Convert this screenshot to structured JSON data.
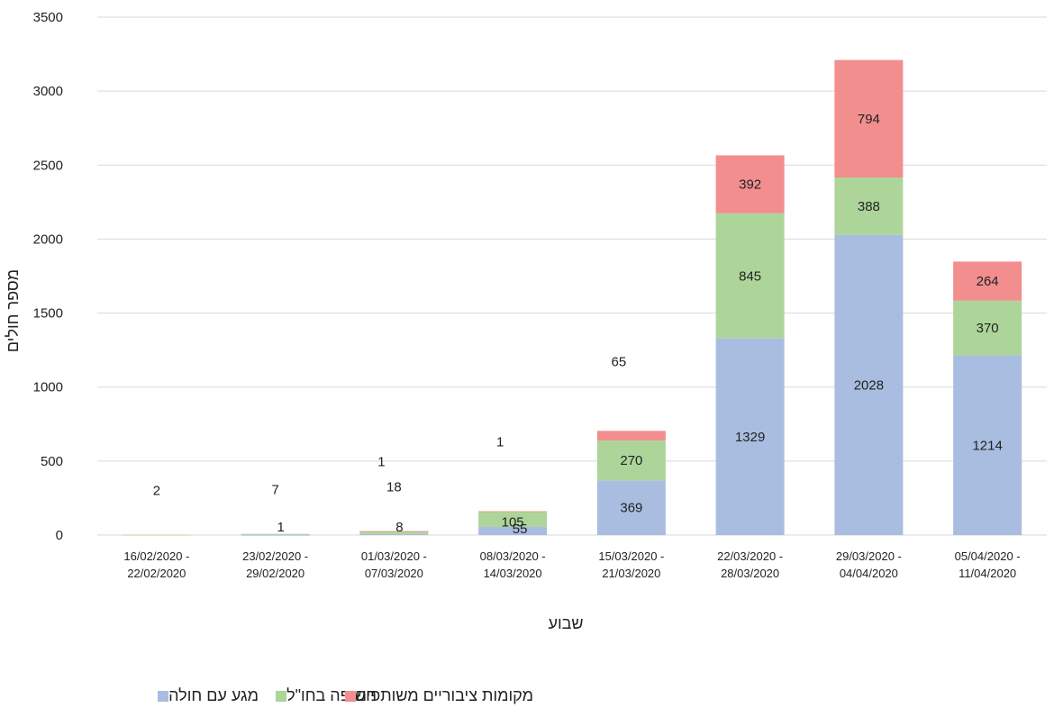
{
  "chart_data": {
    "type": "bar",
    "stacked": true,
    "title": "",
    "xlabel": "שבוע",
    "ylabel": "מספר חולים",
    "ylim": [
      0,
      3500
    ],
    "yticks": [
      "0",
      "500",
      "1000",
      "1500",
      "2000",
      "2500",
      "3000",
      "3500"
    ],
    "grid": true,
    "legend_position": "bottom",
    "categories": [
      [
        "16/02/2020 -",
        "22/02/2020"
      ],
      [
        "23/02/2020 -",
        "29/02/2020"
      ],
      [
        "01/03/2020 -",
        "07/03/2020"
      ],
      [
        "08/03/2020 -",
        "14/03/2020"
      ],
      [
        "15/03/2020 -",
        "21/03/2020"
      ],
      [
        "22/03/2020 -",
        "28/03/2020"
      ],
      [
        "29/03/2020 -",
        "04/04/2020"
      ],
      [
        "05/04/2020 -",
        "11/04/2020"
      ]
    ],
    "series": [
      {
        "name": "מגע עם חולה",
        "color": "#A9BDE0",
        "label_color": "#2F5A9E",
        "values": [
          0,
          1,
          8,
          55,
          369,
          1329,
          2028,
          1214
        ],
        "labels": [
          "",
          "1",
          "8",
          "55",
          "369",
          "1329",
          "2028",
          "1214"
        ]
      },
      {
        "name": "חשיפה בחו\"ל",
        "color": "#ADD59A",
        "label_color": "#4A7A2E",
        "values": [
          2,
          7,
          18,
          105,
          270,
          845,
          388,
          370
        ],
        "labels": [
          "2",
          "7",
          "18",
          "105",
          "270",
          "845",
          "388",
          "370"
        ]
      },
      {
        "name": "מקומות ציבוריים משותפים",
        "color": "#F28E8E",
        "label_color": "#E00000",
        "values": [
          0,
          0,
          1,
          1,
          65,
          392,
          794,
          264
        ],
        "labels": [
          "",
          "",
          "1",
          "1",
          "65",
          "392",
          "794",
          "264"
        ]
      }
    ]
  }
}
